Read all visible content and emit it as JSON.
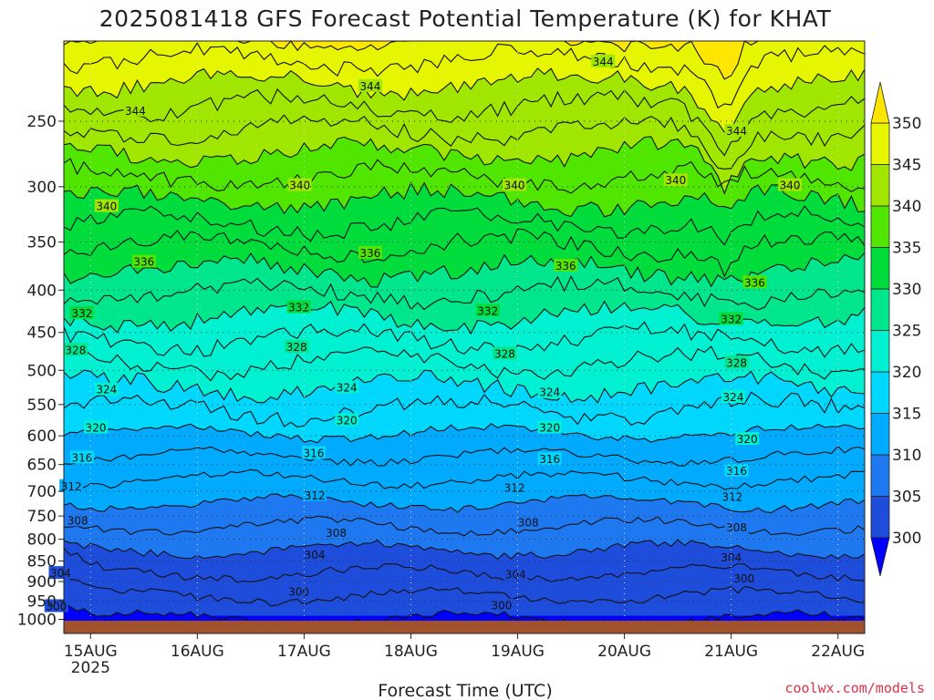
{
  "chart_data": {
    "type": "heatmap",
    "title": "2025081418 GFS Forecast Potential Temperature (K) for KHAT",
    "xlabel": "Forecast Time (UTC)",
    "ylabel": "",
    "credit": "coolwx.com/models",
    "x_ticks": [
      {
        "label": "15AUG",
        "sub": "2025",
        "day": 15
      },
      {
        "label": "16AUG",
        "sub": "",
        "day": 16
      },
      {
        "label": "17AUG",
        "sub": "",
        "day": 17
      },
      {
        "label": "18AUG",
        "sub": "",
        "day": 18
      },
      {
        "label": "19AUG",
        "sub": "",
        "day": 19
      },
      {
        "label": "20AUG",
        "sub": "",
        "day": 20
      },
      {
        "label": "21AUG",
        "sub": "",
        "day": 21
      },
      {
        "label": "22AUG",
        "sub": "",
        "day": 22
      }
    ],
    "x_range_days": [
      14.75,
      22.25
    ],
    "y_axis": "pressure (hPa), inverted, log scale",
    "y_range_hpa": [
      1040,
      200
    ],
    "y_ticks": [
      250,
      300,
      350,
      400,
      450,
      500,
      550,
      600,
      650,
      700,
      750,
      800,
      850,
      900,
      950,
      1000
    ],
    "colorbar": {
      "levels": [
        300,
        305,
        310,
        315,
        320,
        325,
        330,
        335,
        340,
        345,
        350
      ],
      "labels": [
        "300",
        "305",
        "310",
        "315",
        "320",
        "325",
        "330",
        "335",
        "340",
        "345",
        "350"
      ],
      "colors": [
        "#0000ff",
        "#1e4ddc",
        "#1e78f0",
        "#00aaff",
        "#00d7ff",
        "#00f0d2",
        "#00e68c",
        "#00dc3c",
        "#50e600",
        "#a0e600",
        "#e6f500",
        "#ffe600"
      ],
      "extend": "both"
    },
    "contour_labels": [
      {
        "value": 344,
        "day": 15.42,
        "p": 243
      },
      {
        "value": 344,
        "day": 17.62,
        "p": 227
      },
      {
        "value": 344,
        "day": 19.8,
        "p": 212
      },
      {
        "value": 344,
        "day": 21.05,
        "p": 257
      },
      {
        "value": 340,
        "day": 15.15,
        "p": 317
      },
      {
        "value": 340,
        "day": 16.96,
        "p": 299
      },
      {
        "value": 340,
        "day": 18.97,
        "p": 299
      },
      {
        "value": 340,
        "day": 20.48,
        "p": 295
      },
      {
        "value": 340,
        "day": 21.55,
        "p": 299
      },
      {
        "value": 336,
        "day": 15.5,
        "p": 370
      },
      {
        "value": 336,
        "day": 17.62,
        "p": 361
      },
      {
        "value": 336,
        "day": 19.45,
        "p": 374
      },
      {
        "value": 336,
        "day": 21.22,
        "p": 392
      },
      {
        "value": 332,
        "day": 14.92,
        "p": 427
      },
      {
        "value": 332,
        "day": 16.95,
        "p": 420
      },
      {
        "value": 332,
        "day": 18.72,
        "p": 424
      },
      {
        "value": 332,
        "day": 21.0,
        "p": 434
      },
      {
        "value": 328,
        "day": 14.86,
        "p": 473
      },
      {
        "value": 328,
        "day": 16.93,
        "p": 469
      },
      {
        "value": 328,
        "day": 18.88,
        "p": 478
      },
      {
        "value": 328,
        "day": 21.05,
        "p": 490
      },
      {
        "value": 324,
        "day": 15.15,
        "p": 528
      },
      {
        "value": 324,
        "day": 17.4,
        "p": 525
      },
      {
        "value": 324,
        "day": 19.3,
        "p": 532
      },
      {
        "value": 324,
        "day": 21.02,
        "p": 539
      },
      {
        "value": 320,
        "day": 15.05,
        "p": 587
      },
      {
        "value": 320,
        "day": 17.4,
        "p": 575
      },
      {
        "value": 320,
        "day": 19.3,
        "p": 587
      },
      {
        "value": 320,
        "day": 21.15,
        "p": 606
      },
      {
        "value": 316,
        "day": 14.92,
        "p": 638
      },
      {
        "value": 316,
        "day": 17.09,
        "p": 630
      },
      {
        "value": 316,
        "day": 19.3,
        "p": 641
      },
      {
        "value": 316,
        "day": 21.05,
        "p": 662
      },
      {
        "value": 312,
        "day": 14.82,
        "p": 691
      },
      {
        "value": 312,
        "day": 17.1,
        "p": 709
      },
      {
        "value": 312,
        "day": 18.97,
        "p": 694
      },
      {
        "value": 312,
        "day": 21.01,
        "p": 712
      },
      {
        "value": 308,
        "day": 14.88,
        "p": 760
      },
      {
        "value": 308,
        "day": 17.3,
        "p": 787
      },
      {
        "value": 308,
        "day": 19.1,
        "p": 764
      },
      {
        "value": 308,
        "day": 21.05,
        "p": 775
      },
      {
        "value": 304,
        "day": 14.72,
        "p": 880
      },
      {
        "value": 304,
        "day": 17.1,
        "p": 836
      },
      {
        "value": 304,
        "day": 18.98,
        "p": 883
      },
      {
        "value": 304,
        "day": 21.0,
        "p": 843
      },
      {
        "value": 300,
        "day": 14.68,
        "p": 965
      },
      {
        "value": 300,
        "day": 16.95,
        "p": 927
      },
      {
        "value": 300,
        "day": 18.85,
        "p": 963
      },
      {
        "value": 300,
        "day": 21.12,
        "p": 893
      }
    ]
  }
}
